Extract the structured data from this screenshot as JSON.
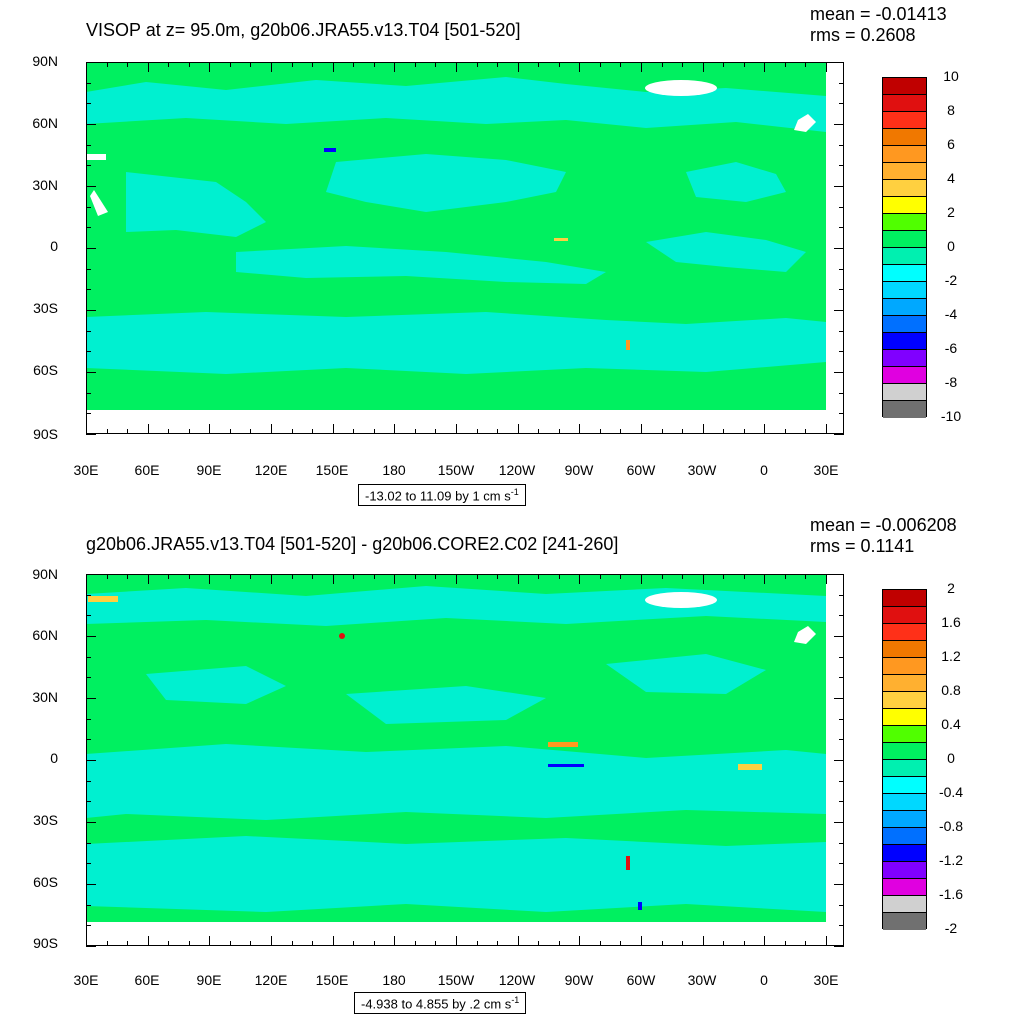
{
  "panel1": {
    "title": "VISOP at z=  95.0m, g20b06.JRA55.v13.T04 [501-520]",
    "mean": "mean = -0.01413",
    "rms": "rms = 0.2608",
    "range_label": "-13.02 to 11.09 by 1 cm s",
    "range_unit_exp": "-1",
    "colorbar_labels": [
      "10",
      "8",
      "6",
      "4",
      "2",
      "0",
      "-2",
      "-4",
      "-6",
      "-8",
      "-10"
    ]
  },
  "panel2": {
    "title": "g20b06.JRA55.v13.T04 [501-520] - g20b06.CORE2.C02 [241-260]",
    "mean": "mean = -0.006208",
    "rms": "rms = 0.1141",
    "range_label": "-4.938 to 4.855 by .2 cm s",
    "range_unit_exp": "-1",
    "colorbar_labels": [
      "2",
      "1.6",
      "1.2",
      "0.8",
      "0.4",
      "0",
      "-0.4",
      "-0.8",
      "-1.2",
      "-1.6",
      "-2"
    ]
  },
  "lat_labels": [
    "90N",
    "60N",
    "30N",
    "0",
    "30S",
    "60S",
    "90S"
  ],
  "lon_labels": [
    "30E",
    "60E",
    "90E",
    "120E",
    "150E",
    "180",
    "150W",
    "120W",
    "90W",
    "60W",
    "30W",
    "0",
    "30E"
  ],
  "colorbar_colors": [
    "#c00000",
    "#e01010",
    "#ff3018",
    "#f07800",
    "#ff9820",
    "#ffb030",
    "#ffd040",
    "#ffff00",
    "#50ff00",
    "#00f060",
    "#00f0b0",
    "#00ffff",
    "#00d8ff",
    "#00a8ff",
    "#0070ff",
    "#0000ff",
    "#8000ff",
    "#e000e0",
    "#d0d0d0",
    "#707070"
  ],
  "map_colors": {
    "ocean": "#00f060",
    "negative_light": "#00f0d0",
    "land_mask": "#ffffff"
  }
}
